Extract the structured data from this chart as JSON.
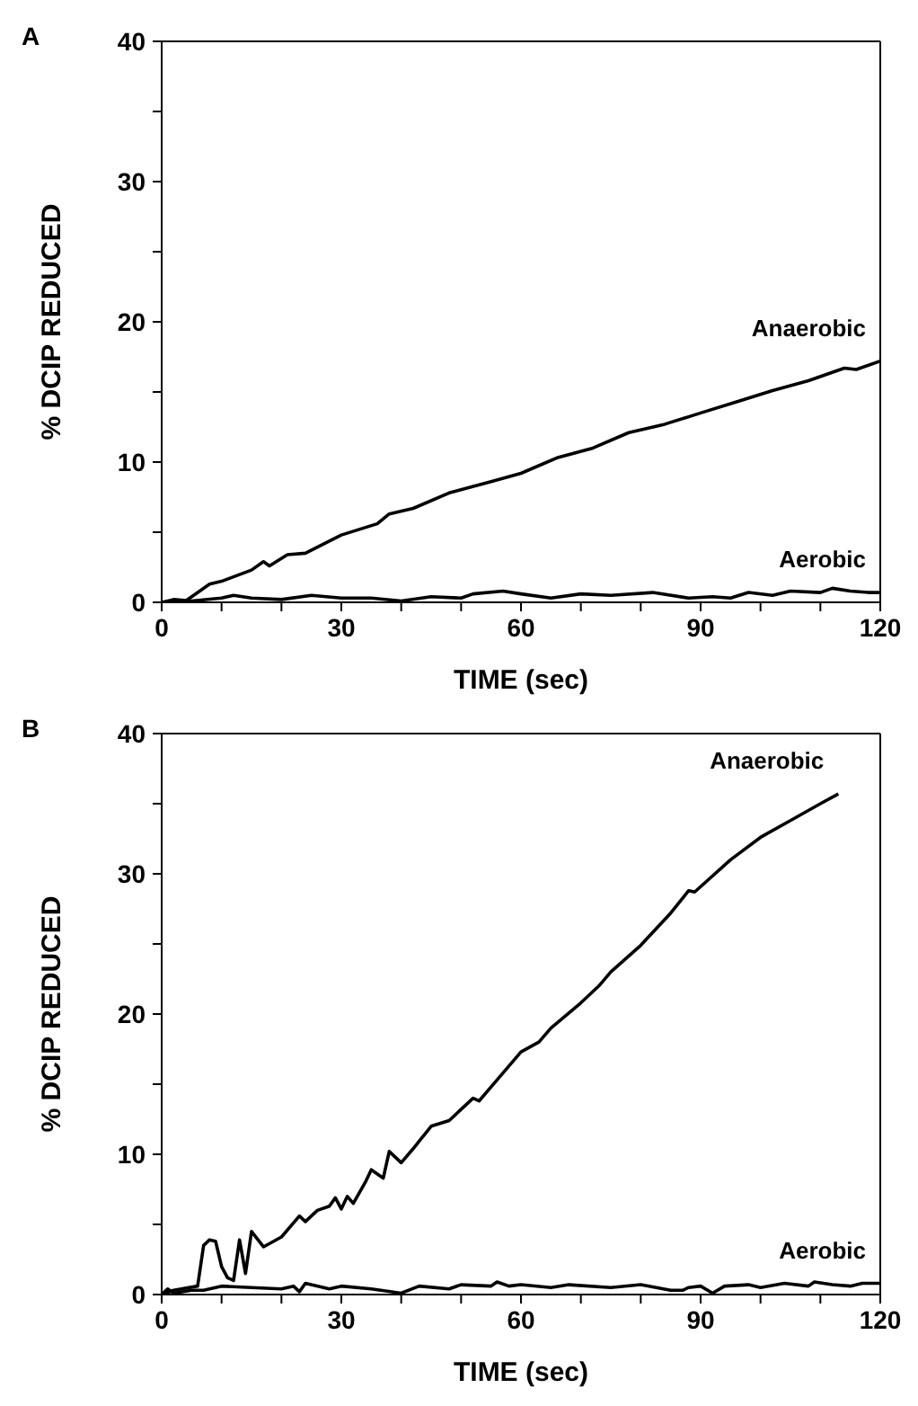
{
  "chart_data": [
    {
      "type": "line",
      "title": "A",
      "xlabel": "TIME (sec)",
      "ylabel": "% DCIP REDUCED",
      "xlim": [
        0,
        120
      ],
      "ylim": [
        0,
        40
      ],
      "xticks": [
        0,
        {
          "value": 10,
          "label": null
        },
        {
          "value": 20,
          "label": null
        },
        30,
        {
          "value": 40,
          "label": null
        },
        {
          "value": 50,
          "label": null
        },
        60,
        {
          "value": 70,
          "label": null
        },
        {
          "value": 80,
          "label": null
        },
        90,
        {
          "value": 100,
          "label": null
        },
        {
          "value": 110,
          "label": null
        },
        120
      ],
      "yticks": [
        0,
        {
          "value": 5,
          "label": null
        },
        10,
        {
          "value": 15,
          "label": null
        },
        20,
        {
          "value": 25,
          "label": null
        },
        30,
        {
          "value": 35,
          "label": null
        },
        40
      ],
      "marker": "none",
      "legend": false,
      "series": [
        {
          "name": "Anaerobic",
          "color": "#000000",
          "x": [
            0,
            4,
            8,
            10,
            15,
            17,
            18,
            21,
            24,
            30,
            36,
            38,
            42,
            48,
            55,
            60,
            66,
            72,
            78,
            84,
            90,
            96,
            102,
            108,
            114,
            116,
            120
          ],
          "values": [
            0,
            0.1,
            1.3,
            1.5,
            2.3,
            2.9,
            2.6,
            3.4,
            3.5,
            4.8,
            5.6,
            6.3,
            6.7,
            7.8,
            8.6,
            9.2,
            10.3,
            11.0,
            12.1,
            12.7,
            13.5,
            14.3,
            15.1,
            15.8,
            16.7,
            16.6,
            17.2
          ]
        },
        {
          "name": "Aerobic",
          "color": "#000000",
          "x": [
            0,
            2,
            5,
            10,
            12,
            15,
            20,
            25,
            30,
            35,
            40,
            45,
            50,
            52,
            57,
            60,
            65,
            70,
            75,
            82,
            88,
            92,
            95,
            98,
            102,
            105,
            110,
            112,
            115,
            118,
            120
          ],
          "values": [
            0,
            0.2,
            0.1,
            0.3,
            0.5,
            0.3,
            0.2,
            0.5,
            0.3,
            0.3,
            0.1,
            0.4,
            0.3,
            0.6,
            0.8,
            0.6,
            0.3,
            0.6,
            0.5,
            0.7,
            0.3,
            0.4,
            0.3,
            0.7,
            0.5,
            0.8,
            0.7,
            1.0,
            0.8,
            0.7,
            0.7
          ]
        }
      ]
    },
    {
      "type": "line",
      "title": "B",
      "xlabel": "TIME (sec)",
      "ylabel": "% DCIP REDUCED",
      "xlim": [
        0,
        120
      ],
      "ylim": [
        0,
        40
      ],
      "xticks": [
        0,
        {
          "value": 10,
          "label": null
        },
        {
          "value": 20,
          "label": null
        },
        30,
        {
          "value": 40,
          "label": null
        },
        {
          "value": 50,
          "label": null
        },
        60,
        {
          "value": 70,
          "label": null
        },
        {
          "value": 80,
          "label": null
        },
        90,
        {
          "value": 100,
          "label": null
        },
        {
          "value": 110,
          "label": null
        },
        120
      ],
      "yticks": [
        0,
        {
          "value": 5,
          "label": null
        },
        10,
        {
          "value": 15,
          "label": null
        },
        20,
        {
          "value": 25,
          "label": null
        },
        30,
        {
          "value": 35,
          "label": null
        },
        40
      ],
      "marker": "none",
      "legend": false,
      "series": [
        {
          "name": "Anaerobic",
          "color": "#000000",
          "x": [
            0,
            2,
            6,
            7,
            8,
            9,
            10,
            11,
            12,
            13,
            14,
            15,
            17,
            20,
            23,
            24,
            26,
            28,
            29,
            30,
            31,
            32,
            34,
            35,
            37,
            38,
            40,
            42,
            45,
            48,
            52,
            53,
            55,
            60,
            63,
            65,
            70,
            73,
            75,
            80,
            85,
            88,
            89,
            95,
            100,
            105,
            110,
            113
          ],
          "values": [
            0,
            0.3,
            0.6,
            3.5,
            3.9,
            3.8,
            2,
            1.2,
            1,
            3.9,
            1.5,
            4.5,
            3.4,
            4.1,
            5.6,
            5.2,
            6,
            6.3,
            6.9,
            6.1,
            7,
            6.5,
            8,
            8.9,
            8.3,
            10.2,
            9.4,
            10.4,
            12,
            12.4,
            14,
            13.8,
            14.8,
            17.3,
            18,
            19,
            20.8,
            22,
            23,
            24.9,
            27.2,
            28.8,
            28.7,
            31,
            32.6,
            33.8,
            35,
            35.7
          ]
        },
        {
          "name": "Aerobic",
          "color": "#000000",
          "x": [
            0,
            1,
            2,
            5,
            7,
            10,
            15,
            20,
            22,
            23,
            24,
            28,
            30,
            35,
            40,
            43,
            48,
            50,
            55,
            56,
            58,
            60,
            65,
            68,
            75,
            80,
            85,
            87,
            88,
            90,
            92,
            94,
            98,
            100,
            104,
            108,
            109,
            112,
            115,
            117,
            120
          ],
          "values": [
            0,
            0.4,
            0.1,
            0.3,
            0.3,
            0.6,
            0.5,
            0.4,
            0.6,
            0.2,
            0.8,
            0.4,
            0.6,
            0.4,
            0.1,
            0.6,
            0.4,
            0.7,
            0.6,
            0.9,
            0.6,
            0.7,
            0.5,
            0.7,
            0.5,
            0.7,
            0.3,
            0.3,
            0.5,
            0.6,
            0.1,
            0.6,
            0.7,
            0.5,
            0.8,
            0.6,
            0.9,
            0.7,
            0.6,
            0.8,
            0.8
          ]
        }
      ]
    }
  ]
}
